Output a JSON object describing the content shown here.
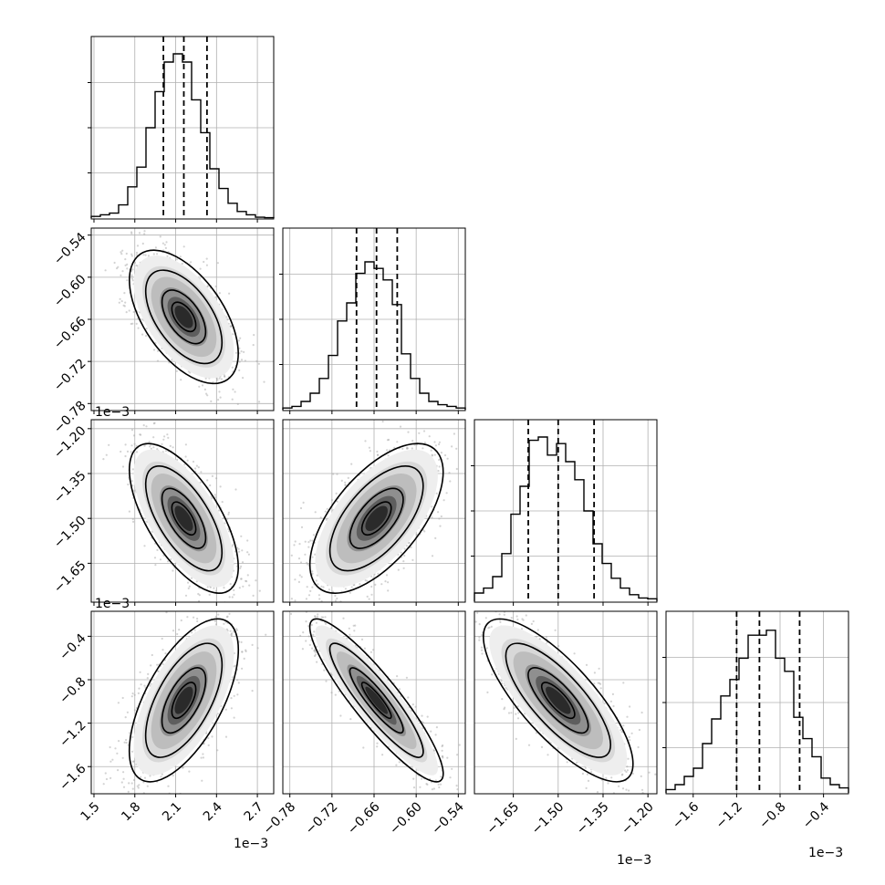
{
  "chart_data": {
    "type": "corner",
    "title": "",
    "grid": true,
    "parameters": [
      {
        "range": [
          1.48,
          2.82
        ],
        "ticks": [
          "1.5",
          "1.8",
          "2.1",
          "2.4",
          "2.7"
        ],
        "tick_values": [
          1.5,
          1.8,
          2.1,
          2.4,
          2.7
        ],
        "offset_label": "1e−3",
        "quantiles": [
          2.01,
          2.16,
          2.33
        ]
      },
      {
        "range": [
          -0.79,
          -0.53
        ],
        "ticks": [
          "−0.78",
          "−0.72",
          "−0.66",
          "−0.60",
          "−0.54"
        ],
        "tick_values": [
          -0.78,
          -0.72,
          -0.66,
          -0.6,
          -0.54
        ],
        "offset_label": "1e−3",
        "quantiles": [
          -0.685,
          -0.6565,
          -0.627
        ]
      },
      {
        "range": [
          -1.78,
          -1.17
        ],
        "ticks": [
          "−1.65",
          "−1.50",
          "−1.35",
          "−1.20"
        ],
        "tick_values": [
          -1.65,
          -1.5,
          -1.35,
          -1.2
        ],
        "offset_label": "1e−3",
        "quantiles": [
          -1.6,
          -1.5,
          -1.38
        ]
      },
      {
        "range": [
          -1.85,
          -0.17
        ],
        "ticks": [
          "−1.6",
          "−1.2",
          "−0.8",
          "−0.4"
        ],
        "tick_values": [
          -1.6,
          -1.2,
          -0.8,
          -0.4
        ],
        "offset_label": "1e−3",
        "quantiles": [
          -1.2,
          -0.99,
          -0.62
        ]
      }
    ],
    "histograms": [
      [
        0.01,
        0.02,
        0.03,
        0.08,
        0.19,
        0.31,
        0.55,
        0.77,
        0.95,
        1.0,
        0.95,
        0.72,
        0.52,
        0.3,
        0.18,
        0.09,
        0.04,
        0.02,
        0.005,
        0.002
      ],
      [
        0.01,
        0.02,
        0.05,
        0.1,
        0.19,
        0.33,
        0.54,
        0.65,
        0.83,
        0.9,
        0.86,
        0.79,
        0.64,
        0.34,
        0.19,
        0.1,
        0.05,
        0.03,
        0.02,
        0.01
      ],
      [
        0.05,
        0.08,
        0.15,
        0.29,
        0.53,
        0.7,
        0.98,
        1.0,
        0.89,
        0.96,
        0.85,
        0.74,
        0.55,
        0.35,
        0.23,
        0.14,
        0.08,
        0.04,
        0.02,
        0.015
      ],
      [
        0.02,
        0.05,
        0.1,
        0.15,
        0.3,
        0.45,
        0.59,
        0.69,
        0.82,
        0.96,
        0.96,
        0.99,
        0.82,
        0.74,
        0.46,
        0.33,
        0.22,
        0.09,
        0.05,
        0.03
      ]
    ],
    "pairs": [
      {
        "x": 0,
        "y": 1,
        "mean": [
          2.16,
          -0.6565
        ],
        "sd": [
          0.16,
          0.038
        ],
        "rho": -0.55
      },
      {
        "x": 0,
        "y": 2,
        "mean": [
          2.16,
          -1.5
        ],
        "sd": [
          0.16,
          0.1
        ],
        "rho": -0.65
      },
      {
        "x": 1,
        "y": 2,
        "mean": [
          -0.6565,
          -1.5
        ],
        "sd": [
          0.038,
          0.1
        ],
        "rho": 0.62
      },
      {
        "x": 0,
        "y": 3,
        "mean": [
          2.16,
          -0.99
        ],
        "sd": [
          0.16,
          0.3
        ],
        "rho": 0.62
      },
      {
        "x": 1,
        "y": 3,
        "mean": [
          -0.6565,
          -0.99
        ],
        "sd": [
          0.038,
          0.3
        ],
        "rho": -0.9
      },
      {
        "x": 2,
        "y": 3,
        "mean": [
          -1.5,
          -0.99
        ],
        "sd": [
          0.1,
          0.3
        ],
        "rho": -0.78
      }
    ]
  }
}
